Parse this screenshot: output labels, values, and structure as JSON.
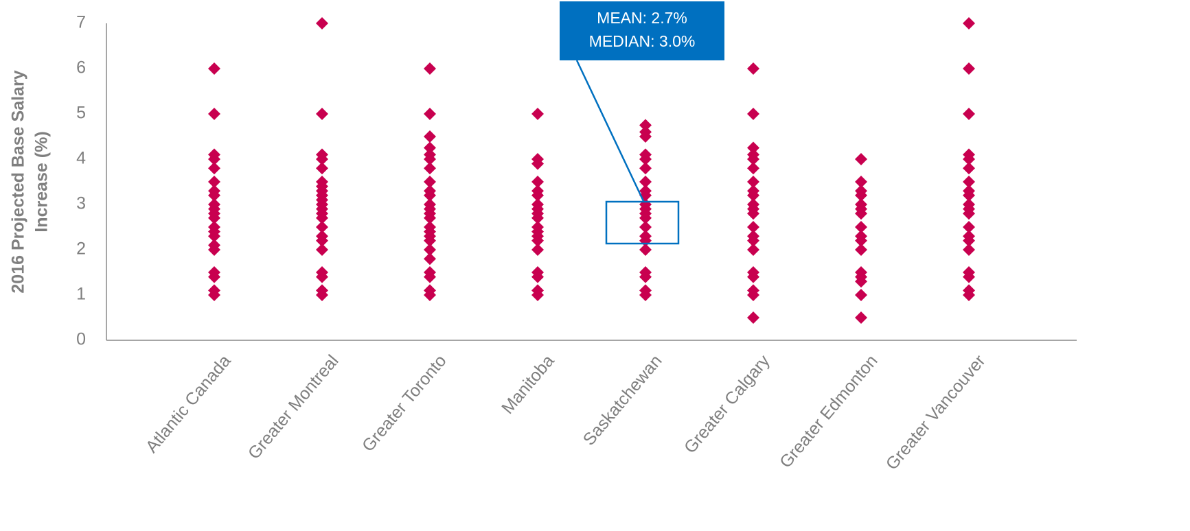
{
  "chart_data": {
    "type": "strip",
    "ylabel": [
      "2016 Projected Base Salary",
      "Increase (%)"
    ],
    "categories": [
      "Atlantic Canada",
      "Greater Montreal",
      "Greater Toronto",
      "Manitoba",
      "Saskatchewan",
      "Greater Calgary",
      "Greater Edmonton",
      "Greater Vancouver"
    ],
    "values": [
      [
        6,
        5,
        4.1,
        4,
        3.8,
        3.5,
        3.3,
        3.2,
        3,
        2.9,
        2.8,
        2.7,
        2.5,
        2.4,
        2.3,
        2.1,
        2,
        1.5,
        1.4,
        1.1,
        1
      ],
      [
        7,
        5,
        4.1,
        4,
        3.8,
        3.5,
        3.4,
        3.3,
        3.2,
        3.1,
        3,
        2.9,
        2.8,
        2.7,
        2.5,
        2.3,
        2.2,
        2,
        1.5,
        1.4,
        1.1,
        1
      ],
      [
        6,
        5,
        4.5,
        4.25,
        4.1,
        4,
        3.8,
        3.5,
        3.3,
        3.2,
        3,
        2.9,
        2.8,
        2.7,
        2.5,
        2.4,
        2.3,
        2.2,
        2,
        1.8,
        1.5,
        1.4,
        1.1,
        1
      ],
      [
        5,
        4,
        3.9,
        3.5,
        3.3,
        3.2,
        3,
        2.9,
        2.8,
        2.7,
        2.5,
        2.4,
        2.3,
        2.2,
        2,
        1.5,
        1.4,
        1.1,
        1
      ],
      [
        4.75,
        4.6,
        4.5,
        4.1,
        4,
        3.8,
        3.5,
        3.3,
        3.2,
        3,
        2.9,
        2.8,
        2.7,
        2.5,
        2.3,
        2.2,
        2,
        1.5,
        1.4,
        1.1,
        1
      ],
      [
        6,
        5,
        4.25,
        4.1,
        4,
        3.8,
        3.5,
        3.3,
        3.2,
        3,
        2.9,
        2.8,
        2.5,
        2.3,
        2.2,
        2,
        1.5,
        1.4,
        1.1,
        1,
        0.5
      ],
      [
        4,
        3.5,
        3.3,
        3.2,
        3,
        2.9,
        2.8,
        2.5,
        2.3,
        2.2,
        2,
        1.5,
        1.4,
        1.3,
        1,
        0.5
      ],
      [
        7,
        6,
        5,
        4.1,
        4,
        3.8,
        3.5,
        3.3,
        3.2,
        3,
        2.9,
        2.8,
        2.5,
        2.3,
        2.2,
        2,
        1.5,
        1.4,
        1.1,
        1
      ]
    ],
    "color": "#c8004f",
    "ylim": [
      0,
      7
    ],
    "yticks": [
      0,
      1,
      2,
      3,
      4,
      5,
      6,
      7
    ],
    "grid": false,
    "annotation": [
      "MEAN: 2.7%",
      "MEDIAN: 3.0%"
    ]
  }
}
